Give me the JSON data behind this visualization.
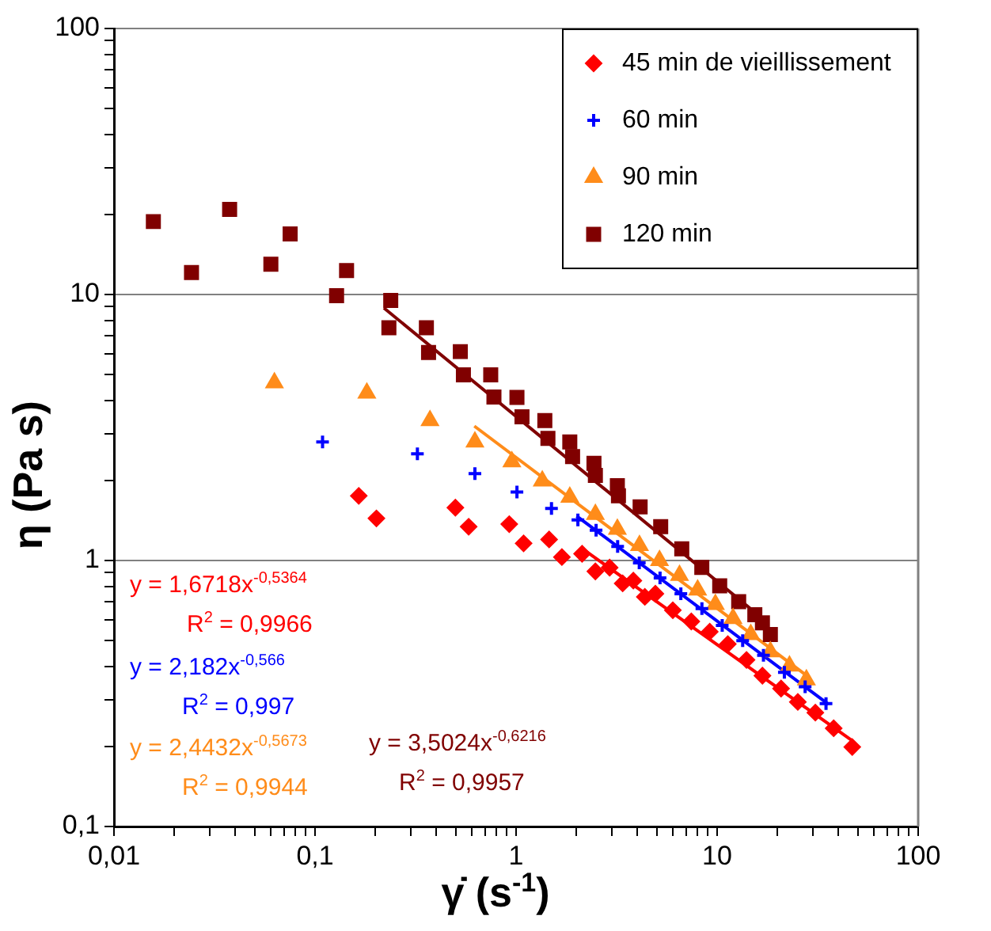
{
  "chart_data": {
    "type": "scatter",
    "xlabel": "γ̇ (s$^{-1}$)",
    "ylabel": "η (Pa s)",
    "log": "xy",
    "grid": "y",
    "legend": "top right",
    "xlim": [
      0.01,
      100
    ],
    "ylim": [
      0.1,
      100
    ],
    "xticks": [
      {
        "value": 0.01,
        "label": "0,01"
      },
      {
        "value": 0.02,
        "label": null
      },
      {
        "value": 0.03,
        "label": null
      },
      {
        "value": 0.04,
        "label": null
      },
      {
        "value": 0.05,
        "label": null
      },
      {
        "value": 0.06,
        "label": null
      },
      {
        "value": 0.07,
        "label": null
      },
      {
        "value": 0.08,
        "label": null
      },
      {
        "value": 0.09,
        "label": null
      },
      {
        "value": 0.1,
        "label": "0,1"
      },
      {
        "value": 0.2,
        "label": null
      },
      {
        "value": 0.3,
        "label": null
      },
      {
        "value": 0.4,
        "label": null
      },
      {
        "value": 0.5,
        "label": null
      },
      {
        "value": 0.6,
        "label": null
      },
      {
        "value": 0.7,
        "label": null
      },
      {
        "value": 0.8,
        "label": null
      },
      {
        "value": 0.9,
        "label": null
      },
      1,
      {
        "value": 2,
        "label": null
      },
      {
        "value": 3,
        "label": null
      },
      {
        "value": 4,
        "label": null
      },
      {
        "value": 5,
        "label": null
      },
      {
        "value": 6,
        "label": null
      },
      {
        "value": 7,
        "label": null
      },
      {
        "value": 8,
        "label": null
      },
      {
        "value": 9,
        "label": null
      },
      10,
      {
        "value": 20,
        "label": null
      },
      {
        "value": 30,
        "label": null
      },
      {
        "value": 40,
        "label": null
      },
      {
        "value": 50,
        "label": null
      },
      {
        "value": 60,
        "label": null
      },
      {
        "value": 70,
        "label": null
      },
      {
        "value": 80,
        "label": null
      },
      {
        "value": 90,
        "label": null
      },
      100
    ],
    "yticks": [
      {
        "value": 0.1,
        "label": "0,1"
      },
      {
        "value": 0.2,
        "label": null
      },
      {
        "value": 0.3,
        "label": null
      },
      {
        "value": 0.4,
        "label": null
      },
      {
        "value": 0.5,
        "label": null
      },
      {
        "value": 0.6,
        "label": null
      },
      {
        "value": 0.7,
        "label": null
      },
      {
        "value": 0.8,
        "label": null
      },
      {
        "value": 0.9,
        "label": null
      },
      1,
      {
        "value": 2,
        "label": null
      },
      {
        "value": 3,
        "label": null
      },
      {
        "value": 4,
        "label": null
      },
      {
        "value": 5,
        "label": null
      },
      {
        "value": 6,
        "label": null
      },
      {
        "value": 7,
        "label": null
      },
      {
        "value": 8,
        "label": null
      },
      {
        "value": 9,
        "label": null
      },
      10,
      {
        "value": 20,
        "label": null
      },
      {
        "value": 30,
        "label": null
      },
      {
        "value": 40,
        "label": null
      },
      {
        "value": 50,
        "label": null
      },
      {
        "value": 60,
        "label": null
      },
      {
        "value": 70,
        "label": null
      },
      {
        "value": 80,
        "label": null
      },
      {
        "value": 90,
        "label": null
      },
      100
    ],
    "series": [
      {
        "name": "45 min de vieillissement",
        "color": "#ff0000",
        "marker": "diamond",
        "x": [
          0.165,
          0.202,
          0.499,
          0.581,
          0.925,
          1.09,
          1.46,
          1.69,
          2.13,
          2.48,
          2.92,
          3.39,
          3.83,
          4.37,
          4.93,
          6.02,
          7.44,
          9.19,
          11.3,
          14.0,
          16.8,
          20.8,
          25.2,
          30.8,
          38,
          47
        ],
        "values": [
          1.75,
          1.44,
          1.58,
          1.34,
          1.37,
          1.16,
          1.2,
          1.03,
          1.06,
          0.91,
          0.94,
          0.82,
          0.84,
          0.73,
          0.75,
          0.65,
          0.59,
          0.54,
          0.485,
          0.423,
          0.369,
          0.33,
          0.294,
          0.268,
          0.234,
          0.199
        ]
      },
      {
        "name": "60 min",
        "color": "#0000ff",
        "marker": "cross",
        "x": [
          0.109,
          0.323,
          0.624,
          1.01,
          1.5,
          2.03,
          2.5,
          3.2,
          4.1,
          5.2,
          6.6,
          8.4,
          10.6,
          13.4,
          17,
          21.6,
          27.4,
          34.8
        ],
        "values": [
          2.79,
          2.52,
          2.12,
          1.81,
          1.57,
          1.42,
          1.3,
          1.13,
          0.98,
          0.86,
          0.75,
          0.66,
          0.57,
          0.5,
          0.44,
          0.38,
          0.335,
          0.29
        ]
      },
      {
        "name": "90 min",
        "color": "#ff8c1a",
        "marker": "triangle",
        "x": [
          0.0628,
          0.181,
          0.373,
          0.624,
          0.953,
          1.35,
          1.85,
          2.48,
          3.19,
          4.11,
          5.17,
          6.5,
          8.0,
          9.8,
          12.0,
          14.7,
          18.4,
          22.9,
          27.8
        ],
        "values": [
          4.66,
          4.26,
          3.36,
          2.79,
          2.35,
          1.99,
          1.73,
          1.49,
          1.31,
          1.14,
          1.0,
          0.88,
          0.775,
          0.684,
          0.605,
          0.527,
          0.454,
          0.401,
          0.356
        ]
      },
      {
        "name": "120 min",
        "color": "#800000",
        "marker": "square",
        "x": [
          0.0157,
          0.0243,
          0.0376,
          0.0603,
          0.0752,
          0.128,
          0.1435,
          0.233,
          0.238,
          0.358,
          0.367,
          0.528,
          0.547,
          0.748,
          0.776,
          1.01,
          1.07,
          1.39,
          1.44,
          1.85,
          1.91,
          2.44,
          2.48,
          3.19,
          3.23,
          4.14,
          5.24,
          6.67,
          8.39,
          10.3,
          12.8,
          15.4,
          16.8,
          18.4
        ],
        "values": [
          18.8,
          12.1,
          20.9,
          13.0,
          16.9,
          9.9,
          12.3,
          7.5,
          9.5,
          7.5,
          6.05,
          6.1,
          4.99,
          4.99,
          4.12,
          4.1,
          3.47,
          3.36,
          2.88,
          2.79,
          2.46,
          2.32,
          2.09,
          1.91,
          1.75,
          1.59,
          1.34,
          1.107,
          0.942,
          0.803,
          0.7,
          0.625,
          0.583,
          0.527
        ]
      },
      {
        "type": "line",
        "color": "#ff0000",
        "marker": "none",
        "x": [
          2.2,
          47
        ],
        "values": [
          1.09,
          0.21
        ]
      },
      {
        "type": "line",
        "color": "#0000ff",
        "marker": "none",
        "x": [
          2.0,
          35.8
        ],
        "values": [
          1.47,
          0.288
        ]
      },
      {
        "type": "line",
        "color": "#ff8c1a",
        "marker": "none",
        "x": [
          0.62,
          27.8
        ],
        "values": [
          3.2,
          0.37
        ]
      },
      {
        "type": "line",
        "color": "#800000",
        "marker": "none",
        "x": [
          0.22,
          18
        ],
        "values": [
          8.9,
          0.58
        ]
      }
    ],
    "annotations": [
      "y = 1,6718x$^{-0,5364}$",
      "R$^{2}$ = 0,9966",
      "y = 2,182x$^{-0,566}$",
      "R$^{2}$ = 0,997",
      "y = 2,4432x$^{-0,5673}$",
      "R$^{2}$ = 0,9944",
      "y = 3,5024x$^{-0,6216}$",
      "R$^{2}$ = 0,9957"
    ]
  }
}
